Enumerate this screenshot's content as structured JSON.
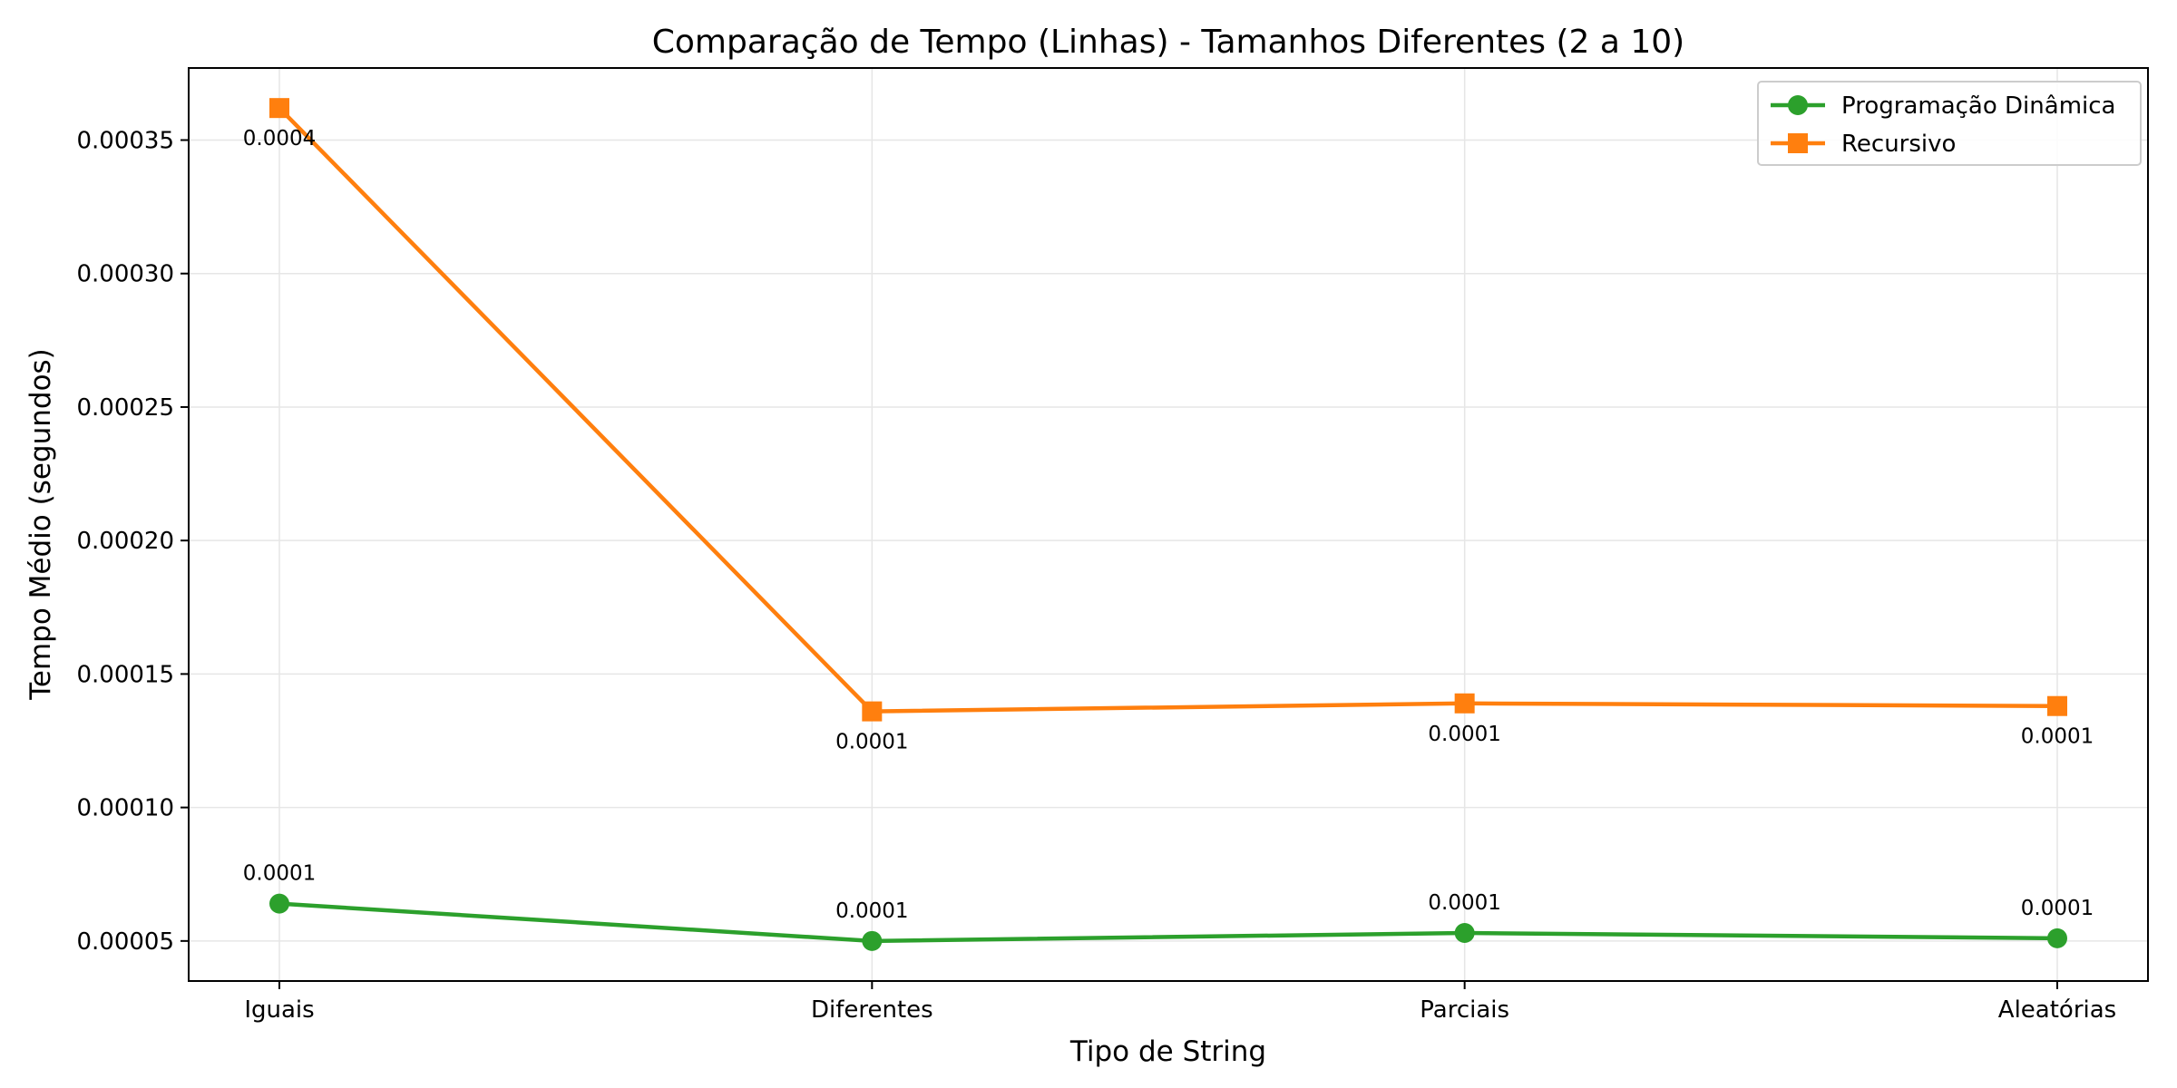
{
  "chart_data": {
    "type": "line",
    "title": "Comparação de Tempo (Linhas) - Tamanhos Diferentes (2 a 10)",
    "xlabel": "Tipo de String",
    "ylabel": "Tempo Médio (segundos)",
    "categories": [
      "Iguais",
      "Diferentes",
      "Parciais",
      "Aleatórias"
    ],
    "ylim": [
      3.5e-05,
      0.000377
    ],
    "yticks": [
      5e-05,
      0.0001,
      0.00015,
      0.0002,
      0.00025,
      0.0003,
      0.00035
    ],
    "ytick_labels": [
      "0.00005",
      "0.00010",
      "0.00015",
      "0.00020",
      "0.00025",
      "0.00030",
      "0.00035"
    ],
    "grid": true,
    "legend_position": "top-right",
    "series": [
      {
        "name": "Programação Dinâmica",
        "color": "#2ca02c",
        "marker": "circle",
        "values": [
          6.4e-05,
          5e-05,
          5.3e-05,
          5.1e-05
        ],
        "labels": [
          "0.0001",
          "0.0001",
          "0.0001",
          "0.0001"
        ],
        "label_position": "above"
      },
      {
        "name": "Recursivo",
        "color": "#ff7f0e",
        "marker": "square",
        "values": [
          0.000362,
          0.000136,
          0.000139,
          0.000138
        ],
        "labels": [
          "0.0004",
          "0.0001",
          "0.0001",
          "0.0001"
        ],
        "label_position": "below"
      }
    ]
  }
}
